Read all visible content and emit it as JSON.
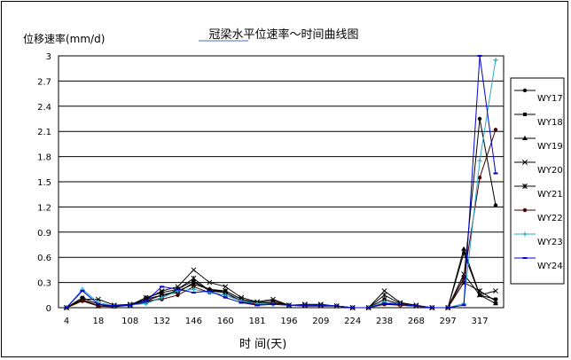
{
  "chart_data": {
    "type": "line",
    "title": "冠梁水平位速率～时间曲线图",
    "ylabel": "位移速率(mm/d)",
    "xlabel": "时    间(天)",
    "ylim": [
      0,
      3
    ],
    "yticks": [
      "0",
      "0.3",
      "0.6",
      "0.9",
      "1.2",
      "1.5",
      "1.8",
      "2.1",
      "2.4",
      "2.7",
      "3"
    ],
    "yticks_values": [
      0,
      0.3,
      0.6,
      0.9,
      1.2,
      1.5,
      1.8,
      2.1,
      2.4,
      2.7,
      3
    ],
    "x": [
      4,
      11,
      18,
      26,
      108,
      120,
      132,
      139,
      146,
      153,
      160,
      170,
      181,
      188,
      196,
      202,
      209,
      216,
      224,
      231,
      238,
      245,
      268,
      283,
      297,
      307,
      317,
      327
    ],
    "xticks_shown": [
      "4",
      "18",
      "108",
      "132",
      "146",
      "160",
      "181",
      "196",
      "209",
      "224",
      "238",
      "268",
      "297",
      "317"
    ],
    "grid": "horizontal",
    "legend_position": "right",
    "series": [
      {
        "name": "WY17",
        "color": "#000000",
        "marker": "dot",
        "values": [
          0,
          0.08,
          0.02,
          0.02,
          0.03,
          0.08,
          0.15,
          0.18,
          0.3,
          0.22,
          0.2,
          0.1,
          0.06,
          0.08,
          0.03,
          0.03,
          0.03,
          0.02,
          0,
          0,
          0.05,
          0.03,
          0.02,
          0,
          0,
          0.35,
          2.25,
          1.22
        ]
      },
      {
        "name": "WY18",
        "color": "#000000",
        "marker": "square",
        "values": [
          0,
          0.12,
          0.04,
          0.02,
          0.03,
          0.06,
          0.12,
          0.22,
          0.32,
          0.2,
          0.18,
          0.08,
          0.05,
          0.05,
          0.03,
          0.03,
          0.03,
          0.02,
          0,
          0,
          0.1,
          0.04,
          0.02,
          0,
          0,
          0.65,
          0.15,
          0.1
        ]
      },
      {
        "name": "WY19",
        "color": "#000000",
        "marker": "triangle",
        "values": [
          0,
          0.1,
          0.02,
          0.02,
          0.03,
          0.1,
          0.15,
          0.2,
          0.28,
          0.22,
          0.18,
          0.07,
          0.04,
          0.06,
          0.03,
          0.02,
          0.02,
          0.02,
          0,
          0,
          0.05,
          0.04,
          0.02,
          0,
          0,
          0.7,
          0.15,
          0.05
        ]
      },
      {
        "name": "WY20",
        "color": "#000000",
        "marker": "x",
        "values": [
          0,
          0.1,
          0.1,
          0.03,
          0.04,
          0.1,
          0.2,
          0.25,
          0.45,
          0.3,
          0.25,
          0.12,
          0.07,
          0.1,
          0.03,
          0.04,
          0.04,
          0.02,
          0,
          0,
          0.2,
          0.06,
          0.03,
          0,
          0,
          0.4,
          0.15,
          0.2
        ]
      },
      {
        "name": "WY21",
        "color": "#000000",
        "marker": "star",
        "values": [
          0,
          0.1,
          0.02,
          0.02,
          0.03,
          0.12,
          0.18,
          0.22,
          0.35,
          0.2,
          0.2,
          0.1,
          0.05,
          0.06,
          0.03,
          0.03,
          0.03,
          0.02,
          0,
          0,
          0.15,
          0.05,
          0.02,
          0,
          0,
          0.3,
          0.2,
          0.08
        ]
      },
      {
        "name": "WY22",
        "color": "#4a0000",
        "marker": "dot",
        "values": [
          0,
          0.08,
          0.02,
          0.01,
          0.03,
          0.08,
          0.1,
          0.15,
          0.25,
          0.18,
          0.15,
          0.08,
          0.04,
          0.05,
          0.03,
          0.02,
          0.02,
          0.02,
          0,
          0,
          0.04,
          0.03,
          0.02,
          0,
          0,
          0.35,
          1.55,
          2.12
        ]
      },
      {
        "name": "WY23",
        "color": "#2aa8c8",
        "marker": "plus",
        "values": [
          0,
          0.22,
          0.06,
          0.02,
          0.03,
          0.05,
          0.12,
          0.2,
          0.22,
          0.18,
          0.15,
          0.08,
          0.05,
          0.04,
          0.03,
          0.03,
          0.03,
          0.02,
          0,
          0,
          0.07,
          0.04,
          0.02,
          0,
          0,
          0.05,
          1.75,
          2.95
        ]
      },
      {
        "name": "WY24",
        "color": "#0000cc",
        "marker": "dash",
        "values": [
          0,
          0.2,
          0.04,
          0.02,
          0.03,
          0.08,
          0.25,
          0.22,
          0.18,
          0.2,
          0.12,
          0.06,
          0.03,
          0.04,
          0.03,
          0.03,
          0.03,
          0.02,
          0,
          0,
          0.05,
          0.04,
          0.02,
          0,
          0,
          0.03,
          3.0,
          1.6
        ]
      }
    ]
  }
}
